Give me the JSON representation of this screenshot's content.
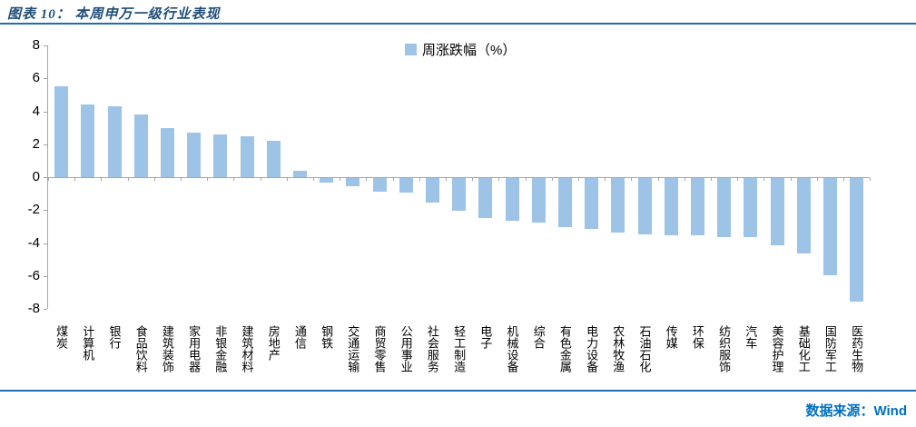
{
  "figure": {
    "title": "图表 10： 本周申万一级行业表现",
    "source": "数据来源：Wind"
  },
  "legend": {
    "label": "周涨跌幅（%）",
    "swatch_color": "#9DC3E6"
  },
  "colors": {
    "bar": "#9DC3E6",
    "axis": "#A6A6A6",
    "title_blue": "#1F4E79",
    "rule_blue": "#1F6CB4",
    "source_blue": "#0070C0"
  },
  "chart_data": {
    "type": "bar",
    "title": "本周申万一级行业表现",
    "legend": [
      "周涨跌幅（%）"
    ],
    "legend_position": "top-center",
    "grid": false,
    "ylim": [
      -8,
      8
    ],
    "yticks": [
      8,
      6,
      4,
      2,
      0,
      -2,
      -4,
      -6,
      -8
    ],
    "xlabel": "",
    "ylabel": "",
    "categories": [
      "煤炭",
      "计算机",
      "银行",
      "食品饮料",
      "建筑装饰",
      "家用电器",
      "非银金融",
      "建筑材料",
      "房地产",
      "通信",
      "钢铁",
      "交通运输",
      "商贸零售",
      "公用事业",
      "社会服务",
      "轻工制造",
      "电子",
      "机械设备",
      "综合",
      "有色金属",
      "电力设备",
      "农林牧渔",
      "石油石化",
      "传媒",
      "环保",
      "纺织服饰",
      "汽车",
      "美容护理",
      "基础化工",
      "国防军工",
      "医药生物"
    ],
    "values": [
      5.5,
      4.4,
      4.3,
      3.8,
      3.0,
      2.7,
      2.6,
      2.5,
      2.2,
      0.4,
      -0.3,
      -0.5,
      -0.8,
      -0.9,
      -1.5,
      -2.0,
      -2.4,
      -2.6,
      -2.7,
      -3.0,
      -3.1,
      -3.3,
      -3.4,
      -3.5,
      -3.5,
      -3.6,
      -3.6,
      -4.1,
      -4.6,
      -5.9,
      -7.5
    ]
  }
}
